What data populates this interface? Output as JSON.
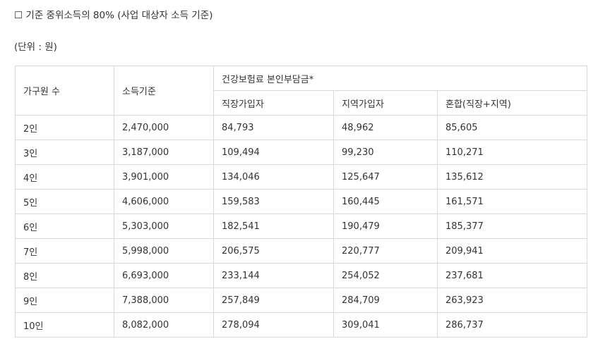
{
  "heading": "☐ 기준 중위소득의 80% (사업 대상자 소득 기준)",
  "unit": "(단위 : 원)",
  "table": {
    "header": {
      "household": "가구원 수",
      "income": "소득기준",
      "premium_group": "건강보험료 본인부담금*",
      "employee": "직장가입자",
      "regional": "지역가입자",
      "mixed": "혼합(직장+지역)"
    },
    "rows": [
      {
        "household": "2인",
        "income": "2,470,000",
        "employee": "84,793",
        "regional": "48,962",
        "mixed": "85,605"
      },
      {
        "household": "3인",
        "income": "3,187,000",
        "employee": "109,494",
        "regional": "99,230",
        "mixed": "110,271"
      },
      {
        "household": "4인",
        "income": "3,901,000",
        "employee": "134,046",
        "regional": "125,647",
        "mixed": "135,612"
      },
      {
        "household": "5인",
        "income": "4,606,000",
        "employee": "159,583",
        "regional": "160,445",
        "mixed": "161,571"
      },
      {
        "household": "6인",
        "income": "5,303,000",
        "employee": "182,541",
        "regional": "190,479",
        "mixed": "185,377"
      },
      {
        "household": "7인",
        "income": "5,998,000",
        "employee": "206,575",
        "regional": "220,777",
        "mixed": "209,941"
      },
      {
        "household": "8인",
        "income": "6,693,000",
        "employee": "233,144",
        "regional": "254,052",
        "mixed": "237,681"
      },
      {
        "household": "9인",
        "income": "7,388,000",
        "employee": "257,849",
        "regional": "284,709",
        "mixed": "263,923"
      },
      {
        "household": "10인",
        "income": "8,082,000",
        "employee": "278,094",
        "regional": "309,041",
        "mixed": "286,737"
      }
    ]
  }
}
